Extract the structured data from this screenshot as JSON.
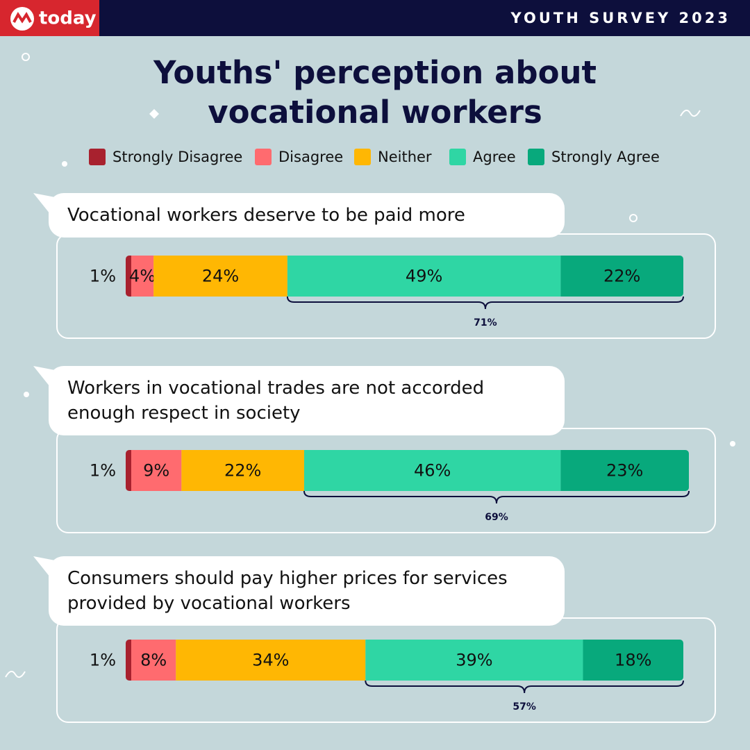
{
  "header": {
    "brand": "today",
    "tag": "YOUTH SURVEY 2023"
  },
  "chart_data": {
    "type": "stacked-bar",
    "title": "Youths' perception about vocational workers",
    "categories": [
      "Vocational workers deserve to be paid more",
      "Workers in vocational trades are not accorded enough respect in society",
      "Consumers should pay higher prices for services provided by vocational workers"
    ],
    "xlim": [
      0,
      100
    ],
    "series": [
      {
        "name": "Strongly Disagree",
        "color": "#a8212e",
        "values": [
          1,
          1,
          1
        ],
        "value_labels": [
          "1%",
          "1%",
          "1%"
        ]
      },
      {
        "name": "Disagree",
        "color": "#ff6b6f",
        "values": [
          4,
          9,
          8
        ],
        "value_labels": [
          "4%",
          "9%",
          "8%"
        ]
      },
      {
        "name": "Neither",
        "color": "#ffb703",
        "values": [
          24,
          22,
          34
        ],
        "value_labels": [
          "24%",
          "22%",
          "34%"
        ]
      },
      {
        "name": "Agree",
        "color": "#2fd6a4",
        "values": [
          49,
          46,
          39
        ],
        "value_labels": [
          "49%",
          "46%",
          "39%"
        ]
      },
      {
        "name": "Strongly Agree",
        "color": "#08a97c",
        "values": [
          22,
          23,
          18
        ],
        "value_labels": [
          "22%",
          "23%",
          "18%"
        ]
      }
    ],
    "agree_totals": {
      "values": [
        71,
        69,
        57
      ],
      "value_labels": [
        "71%",
        "69%",
        "57%"
      ]
    }
  }
}
